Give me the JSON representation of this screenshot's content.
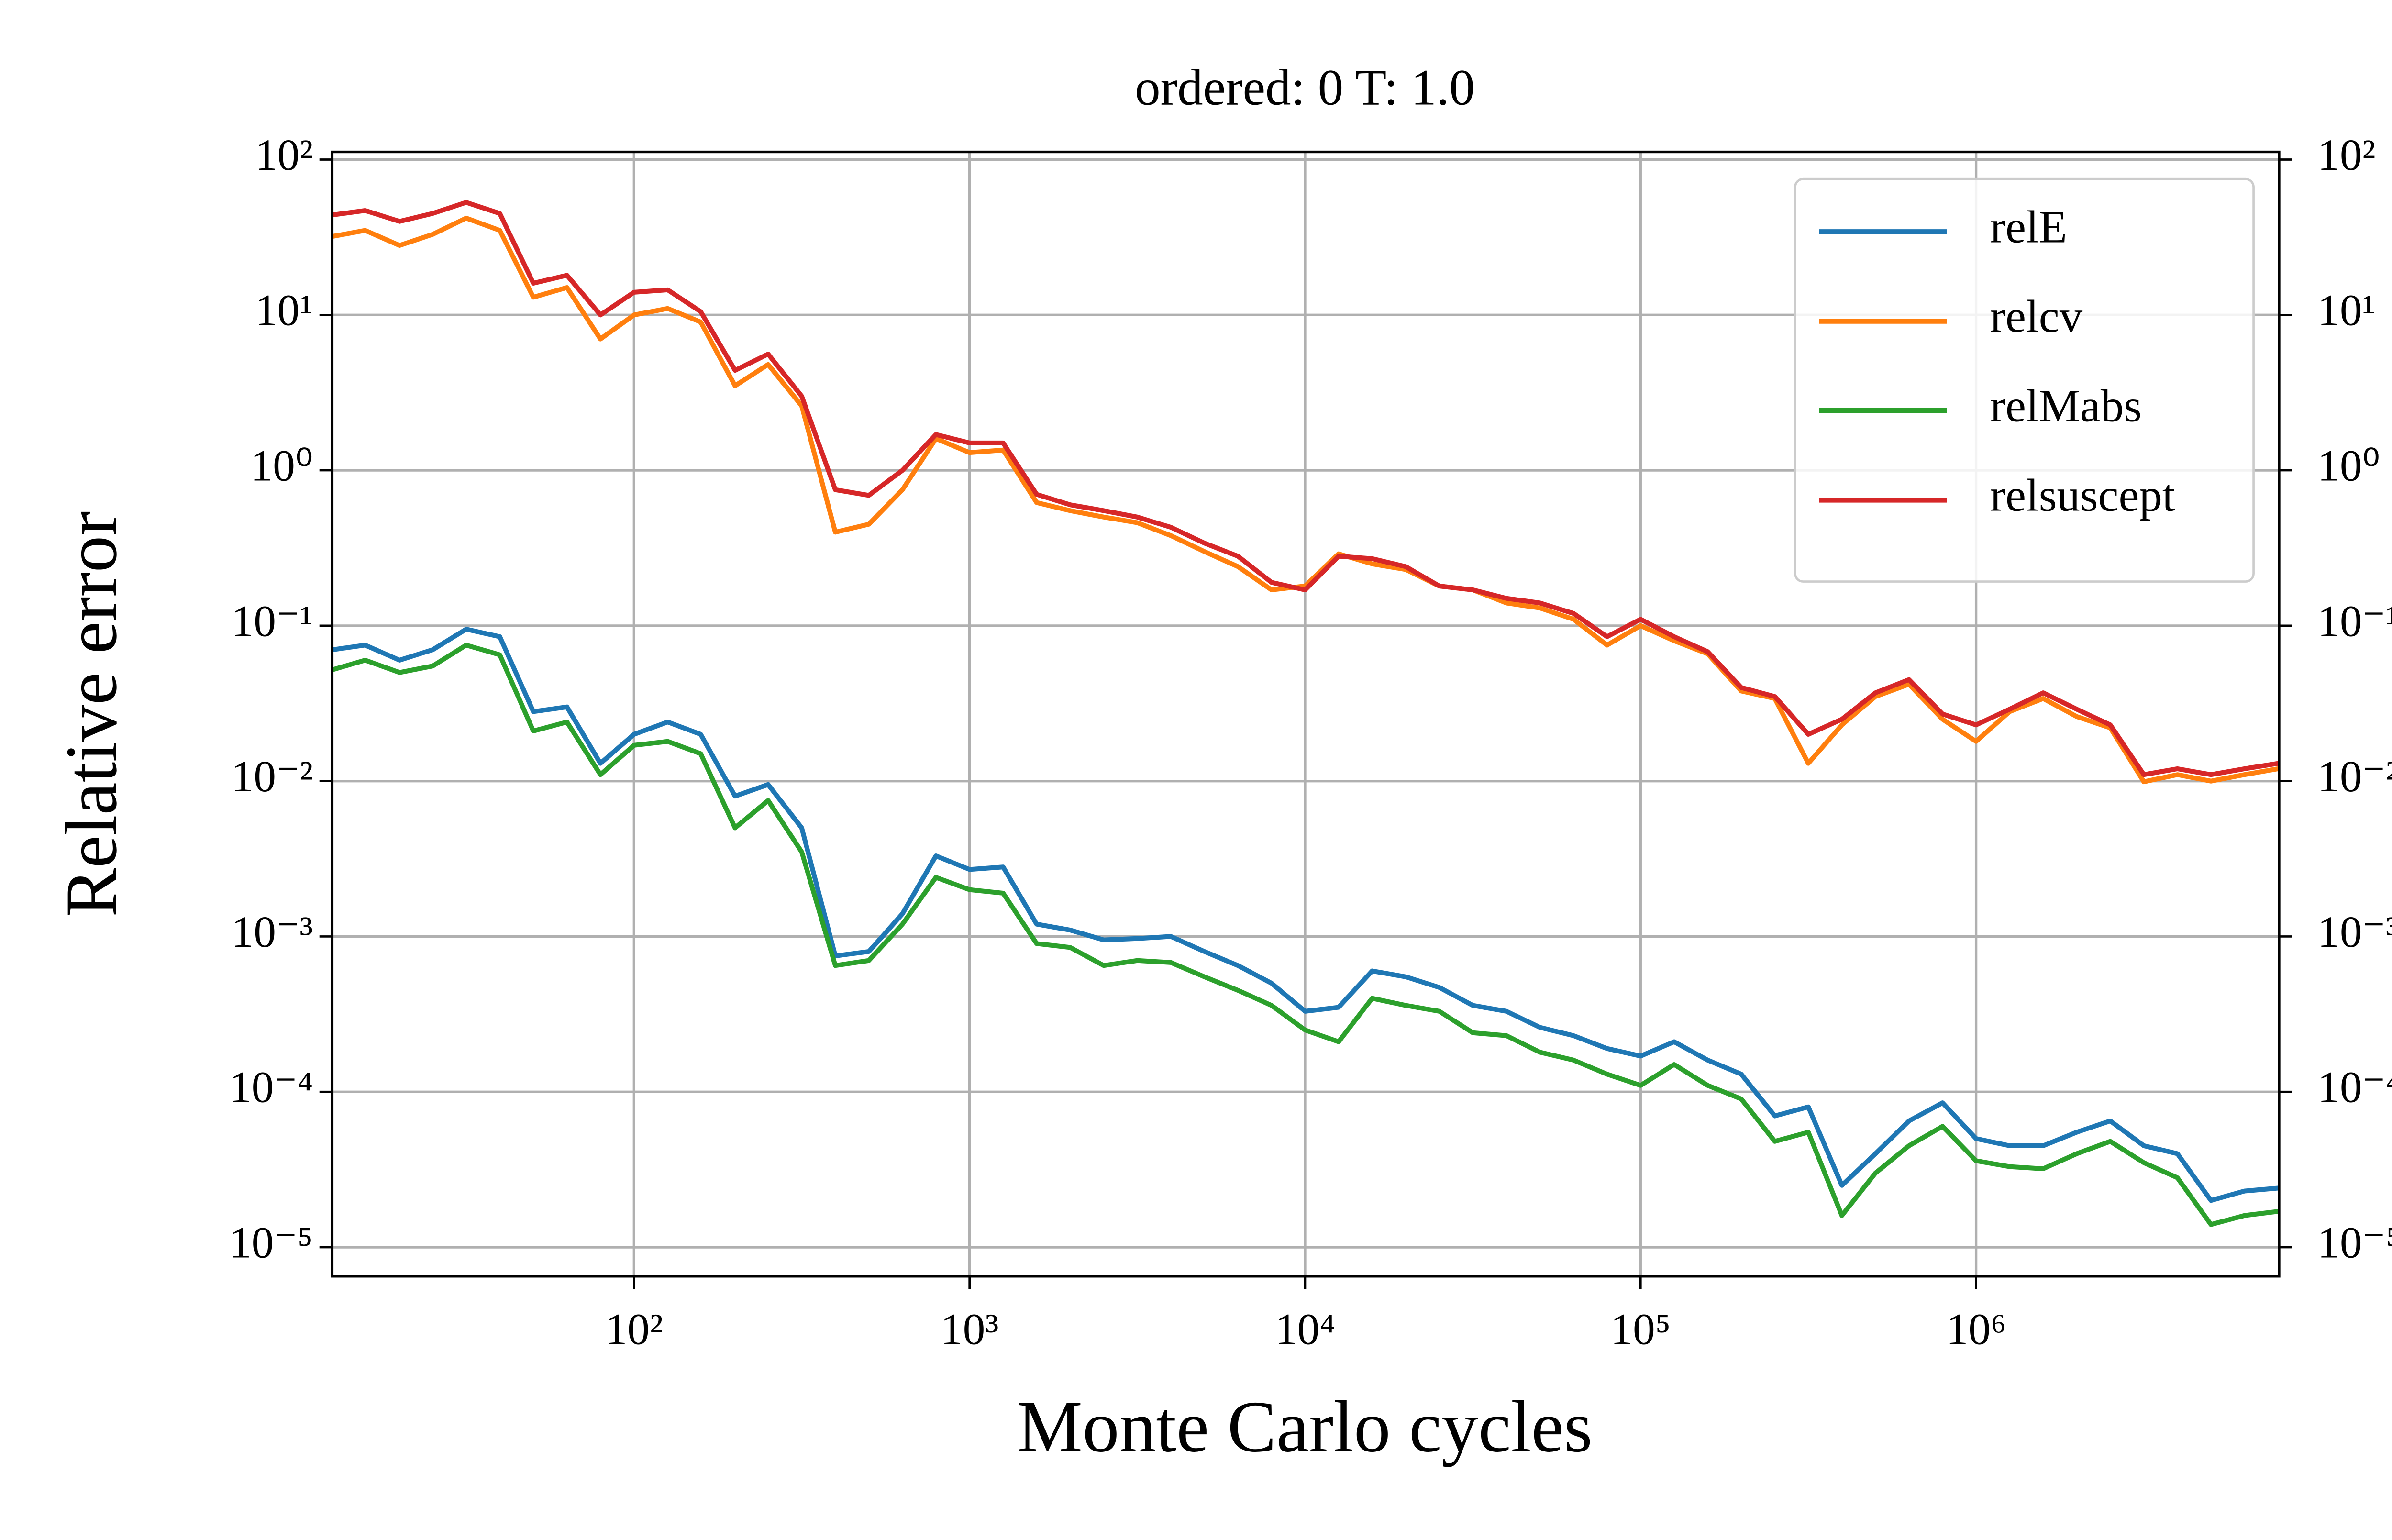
{
  "chart_data": {
    "type": "line",
    "title": "ordered: 0 T: 1.0",
    "xlabel": "Monte Carlo cycles",
    "ylabel": "Relative error",
    "xscale": "log",
    "yscale": "log",
    "grid": true,
    "legend": "upper right",
    "xlim": [
      12.6,
      8000000
    ],
    "ylim": [
      6.5e-06,
      112
    ],
    "xticks": [
      {
        "value": 100,
        "label": "10²"
      },
      {
        "value": 1000,
        "label": "10³"
      },
      {
        "value": 10000,
        "label": "10⁴"
      },
      {
        "value": 100000,
        "label": "10⁵"
      },
      {
        "value": 1000000,
        "label": "10⁶"
      }
    ],
    "yticks": [
      {
        "value": 1e-05,
        "label": "10⁻⁵"
      },
      {
        "value": 0.0001,
        "label": "10⁻⁴"
      },
      {
        "value": 0.001,
        "label": "10⁻³"
      },
      {
        "value": 0.01,
        "label": "10⁻²"
      },
      {
        "value": 0.1,
        "label": "10⁻¹"
      },
      {
        "value": 1,
        "label": "10⁰"
      },
      {
        "value": 10,
        "label": "10¹"
      },
      {
        "value": 100,
        "label": "10²"
      }
    ],
    "x": [
      12.6,
      15.8,
      20,
      25.1,
      31.6,
      39.8,
      50.1,
      63.1,
      79.4,
      100,
      126,
      158,
      200,
      251,
      316,
      398,
      501,
      631,
      794,
      1000,
      1259,
      1585,
      1995,
      2512,
      3162,
      3981,
      5012,
      6310,
      7943,
      10000,
      12589,
      15849,
      19953,
      25119,
      31623,
      39811,
      50119,
      63096,
      79433,
      100000,
      125893,
      158489,
      199526,
      251189,
      316228,
      398107,
      501187,
      630957,
      794328,
      1000000,
      1258925,
      1584893,
      1995262,
      2511886,
      3162278,
      3981072,
      5011872,
      6309573,
      7943282
    ],
    "series": [
      {
        "name": "relE",
        "color": "#1f77b4",
        "values": [
          0.07,
          0.075,
          0.06,
          0.07,
          0.095,
          0.085,
          0.028,
          0.03,
          0.013,
          0.02,
          0.024,
          0.02,
          0.008,
          0.0095,
          0.005,
          0.00075,
          0.0008,
          0.0014,
          0.0033,
          0.0027,
          0.0028,
          0.0012,
          0.0011,
          0.00095,
          0.00097,
          0.001,
          0.0008,
          0.00065,
          0.0005,
          0.00033,
          0.00035,
          0.0006,
          0.00055,
          0.00047,
          0.00036,
          0.00033,
          0.00026,
          0.00023,
          0.00019,
          0.00017,
          0.00021,
          0.00016,
          0.00013,
          7e-05,
          8e-05,
          2.5e-05,
          4e-05,
          6.5e-05,
          8.5e-05,
          5e-05,
          4.5e-05,
          4.5e-05,
          5.5e-05,
          6.5e-05,
          4.5e-05,
          4e-05,
          2e-05,
          2.3e-05,
          2.4e-05
        ]
      },
      {
        "name": "relcv",
        "color": "#ff7f0e",
        "values": [
          32,
          35,
          28,
          33,
          42,
          35,
          13,
          15,
          7,
          10,
          11,
          9,
          3.5,
          4.8,
          2.6,
          0.4,
          0.45,
          0.75,
          1.6,
          1.3,
          1.35,
          0.62,
          0.55,
          0.5,
          0.46,
          0.38,
          0.3,
          0.24,
          0.17,
          0.18,
          0.29,
          0.25,
          0.23,
          0.18,
          0.17,
          0.14,
          0.13,
          0.11,
          0.075,
          0.1,
          0.08,
          0.066,
          0.038,
          0.034,
          0.013,
          0.023,
          0.035,
          0.042,
          0.025,
          0.018,
          0.028,
          0.034,
          0.026,
          0.022,
          0.0099,
          0.011,
          0.01,
          0.011,
          0.012
        ]
      },
      {
        "name": "relMabs",
        "color": "#2ca02c",
        "values": [
          0.052,
          0.06,
          0.05,
          0.055,
          0.075,
          0.065,
          0.021,
          0.024,
          0.011,
          0.017,
          0.018,
          0.015,
          0.005,
          0.0075,
          0.0035,
          0.00065,
          0.0007,
          0.0012,
          0.0024,
          0.002,
          0.0019,
          0.0009,
          0.00085,
          0.00065,
          0.0007,
          0.00068,
          0.00055,
          0.00045,
          0.00036,
          0.00025,
          0.00021,
          0.0004,
          0.00036,
          0.00033,
          0.00024,
          0.00023,
          0.00018,
          0.00016,
          0.00013,
          0.00011,
          0.00015,
          0.00011,
          9e-05,
          4.8e-05,
          5.5e-05,
          1.6e-05,
          3e-05,
          4.5e-05,
          6e-05,
          3.6e-05,
          3.3e-05,
          3.2e-05,
          4e-05,
          4.8e-05,
          3.5e-05,
          2.8e-05,
          1.4e-05,
          1.6e-05,
          1.7e-05
        ]
      },
      {
        "name": "relsuscept",
        "color": "#d62728",
        "values": [
          44,
          47,
          40,
          45,
          53,
          45,
          16,
          18,
          10,
          14,
          14.5,
          10.5,
          4.4,
          5.6,
          3.0,
          0.75,
          0.69,
          1.0,
          1.7,
          1.5,
          1.5,
          0.7,
          0.6,
          0.55,
          0.5,
          0.43,
          0.34,
          0.28,
          0.19,
          0.17,
          0.28,
          0.27,
          0.24,
          0.18,
          0.17,
          0.15,
          0.14,
          0.12,
          0.085,
          0.11,
          0.085,
          0.068,
          0.04,
          0.035,
          0.02,
          0.025,
          0.037,
          0.045,
          0.027,
          0.023,
          0.029,
          0.037,
          0.029,
          0.023,
          0.011,
          0.012,
          0.011,
          0.012,
          0.013
        ]
      }
    ]
  }
}
